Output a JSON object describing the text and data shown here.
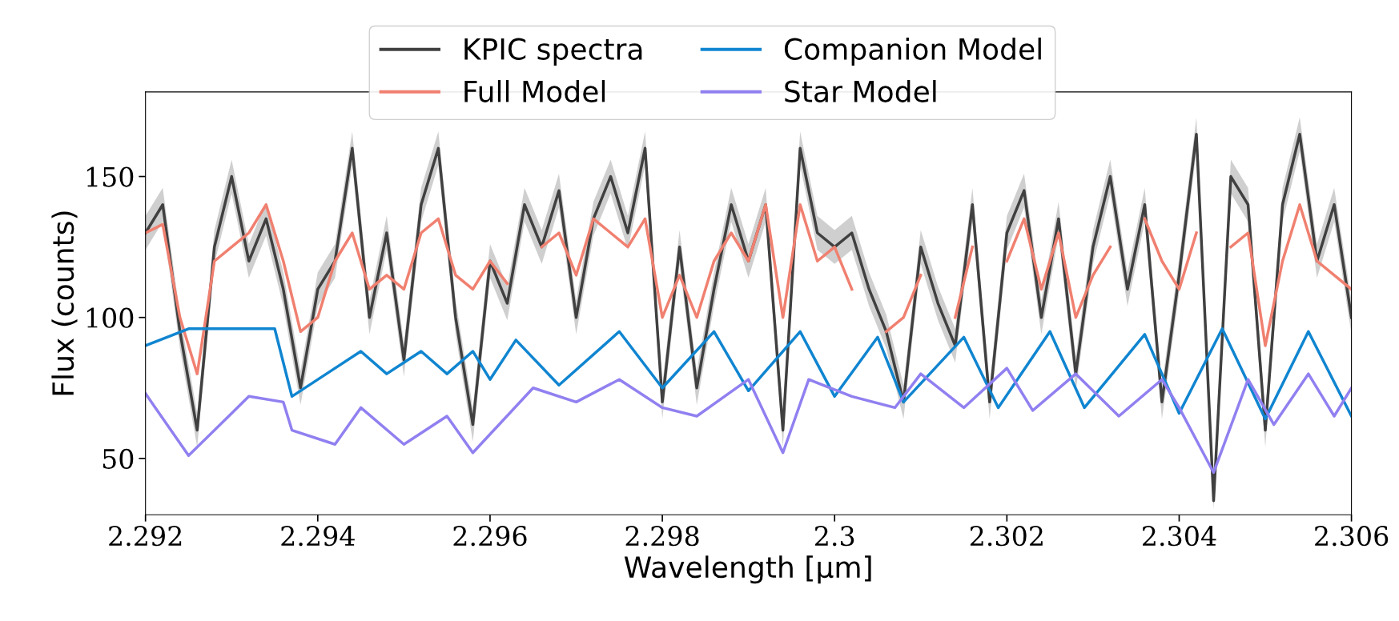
{
  "chart_data": {
    "type": "line",
    "xlabel": "Wavelength [μm]",
    "ylabel": "Flux (counts)",
    "xlim": [
      2.292,
      2.306
    ],
    "xticks": [
      2.292,
      2.294,
      2.296,
      2.298,
      2.3,
      2.302,
      2.304,
      2.306
    ],
    "ylim": [
      30,
      180
    ],
    "yticks": [
      50,
      100,
      150
    ],
    "grid": false,
    "legend": "top",
    "line_style": "solid",
    "marker": "none",
    "x": [
      2.292,
      2.2922,
      2.2924,
      2.2926,
      2.2928,
      2.293,
      2.2932,
      2.2934,
      2.2936,
      2.2938,
      2.294,
      2.2942,
      2.2944,
      2.2946,
      2.2948,
      2.295,
      2.2952,
      2.2954,
      2.2956,
      2.2958,
      2.296,
      2.2962,
      2.2964,
      2.2966,
      2.2968,
      2.297,
      2.2972,
      2.2974,
      2.2976,
      2.2978,
      2.298,
      2.2982,
      2.2984,
      2.2986,
      2.2988,
      2.299,
      2.2992,
      2.2994,
      2.2996,
      2.2998,
      2.3,
      2.3002,
      2.3004,
      2.3006,
      2.3008,
      2.301,
      2.3012,
      2.3014,
      2.3016,
      2.3018,
      2.302,
      2.3022,
      2.3024,
      2.3026,
      2.3028,
      2.303,
      2.3032,
      2.3034,
      2.3036,
      2.3038,
      2.304,
      2.3042,
      2.3044,
      2.3046,
      2.3048,
      2.305,
      2.3052,
      2.3054,
      2.3056,
      2.3058,
      2.306
    ],
    "series": [
      {
        "name": "KPIC spectra",
        "color": "#404040",
        "values": [
          130,
          140,
          95,
          60,
          125,
          150,
          120,
          135,
          110,
          75,
          110,
          120,
          160,
          100,
          130,
          85,
          140,
          160,
          100,
          62,
          120,
          105,
          140,
          125,
          145,
          100,
          135,
          150,
          130,
          160,
          70,
          125,
          75,
          110,
          140,
          120,
          140,
          60,
          160,
          130,
          125,
          130,
          110,
          95,
          70,
          125,
          105,
          90,
          140,
          70,
          130,
          145,
          100,
          135,
          80,
          125,
          150,
          110,
          140,
          70,
          115,
          165,
          35,
          150,
          140,
          60,
          140,
          165,
          120,
          140,
          100
        ],
        "lower": [
          124,
          134,
          89,
          54,
          119,
          144,
          114,
          129,
          104,
          69,
          104,
          114,
          154,
          94,
          124,
          79,
          134,
          154,
          94,
          56,
          114,
          99,
          134,
          119,
          139,
          94,
          129,
          144,
          124,
          154,
          64,
          119,
          69,
          104,
          134,
          114,
          134,
          54,
          154,
          124,
          119,
          124,
          104,
          89,
          64,
          119,
          99,
          84,
          134,
          64,
          124,
          139,
          94,
          129,
          74,
          119,
          144,
          104,
          134,
          64,
          109,
          159,
          32,
          144,
          134,
          54,
          134,
          159,
          114,
          134,
          94
        ],
        "upper": [
          136,
          146,
          101,
          66,
          131,
          156,
          126,
          141,
          116,
          81,
          116,
          126,
          166,
          106,
          136,
          91,
          146,
          166,
          106,
          68,
          126,
          111,
          146,
          131,
          151,
          106,
          141,
          156,
          136,
          166,
          76,
          131,
          81,
          116,
          146,
          126,
          146,
          66,
          166,
          136,
          131,
          136,
          116,
          101,
          76,
          131,
          111,
          96,
          146,
          76,
          136,
          151,
          106,
          141,
          86,
          131,
          156,
          116,
          146,
          76,
          121,
          171,
          41,
          156,
          146,
          66,
          146,
          171,
          126,
          146,
          106
        ]
      },
      {
        "name": "Full Model",
        "color": "#f08070",
        "values": [
          130,
          133,
          100,
          80,
          120,
          125,
          130,
          140,
          120,
          95,
          100,
          120,
          130,
          110,
          115,
          110,
          130,
          135,
          115,
          110,
          120,
          112,
          null,
          125,
          130,
          115,
          135,
          130,
          125,
          135,
          100,
          115,
          100,
          120,
          130,
          120,
          140,
          100,
          140,
          120,
          125,
          110,
          null,
          95,
          100,
          115,
          null,
          100,
          125,
          null,
          120,
          135,
          110,
          130,
          100,
          115,
          125,
          null,
          135,
          120,
          110,
          130,
          null,
          125,
          130,
          90,
          120,
          140,
          120,
          115,
          110
        ]
      },
      {
        "name": "Companion Model",
        "color": "#1085d0",
        "x": [
          2.292,
          2.2925,
          2.2935,
          2.2937,
          2.2942,
          2.2945,
          2.2948,
          2.2952,
          2.2955,
          2.2958,
          2.296,
          2.2963,
          2.2968,
          2.2975,
          2.298,
          2.2986,
          2.299,
          2.2996,
          2.3,
          2.3005,
          2.3008,
          2.3015,
          2.3019,
          2.3025,
          2.3029,
          2.3036,
          2.304,
          2.3045,
          2.305,
          2.3055,
          2.306
        ],
        "values": [
          90,
          96,
          96,
          72,
          82,
          88,
          80,
          88,
          80,
          88,
          78,
          92,
          76,
          95,
          75,
          95,
          74,
          95,
          72,
          93,
          70,
          93,
          68,
          95,
          68,
          94,
          66,
          96,
          64,
          95,
          65
        ]
      },
      {
        "name": "Star Model",
        "color": "#9080f0",
        "x": [
          2.292,
          2.2925,
          2.2932,
          2.2936,
          2.2937,
          2.2942,
          2.2945,
          2.295,
          2.2955,
          2.2958,
          2.2965,
          2.297,
          2.2975,
          2.298,
          2.2984,
          2.299,
          2.2994,
          2.2997,
          2.3002,
          2.3007,
          2.301,
          2.3015,
          2.302,
          2.3023,
          2.3028,
          2.3033,
          2.3038,
          2.304,
          2.3044,
          2.3048,
          2.3051,
          2.3055,
          2.3058,
          2.306
        ],
        "values": [
          73,
          51,
          72,
          70,
          60,
          55,
          68,
          55,
          65,
          52,
          75,
          70,
          78,
          68,
          65,
          78,
          52,
          78,
          72,
          68,
          80,
          68,
          82,
          67,
          80,
          65,
          78,
          68,
          45,
          78,
          62,
          80,
          65,
          75
        ]
      }
    ]
  }
}
